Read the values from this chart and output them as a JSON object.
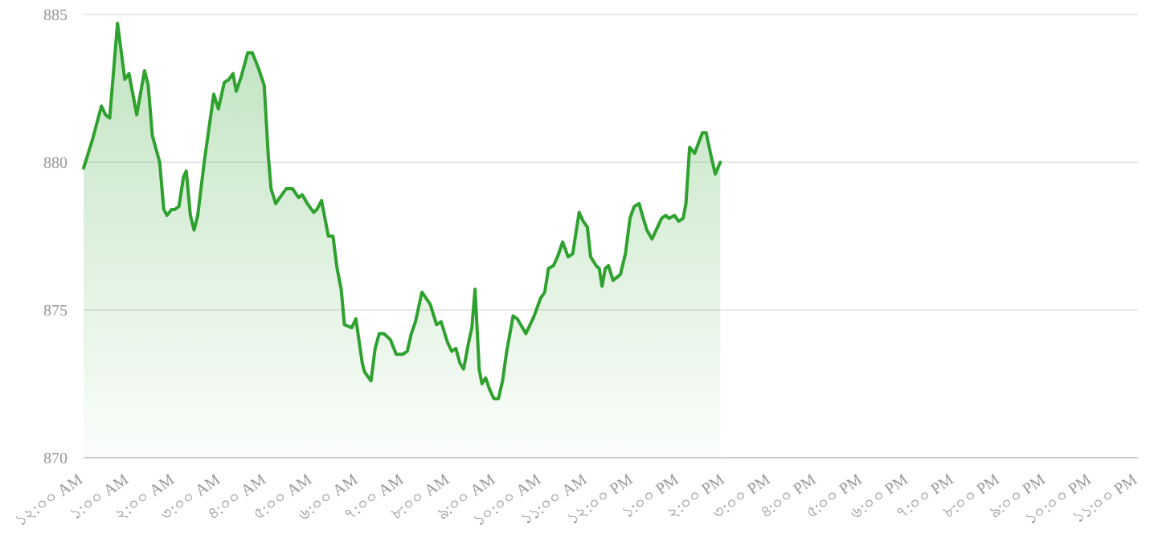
{
  "chart_data": {
    "type": "area",
    "color": "#2ea12e",
    "x": [
      0.0,
      0.2,
      0.39,
      0.48,
      0.57,
      0.74,
      0.9,
      0.99,
      1.16,
      1.33,
      1.41,
      1.5,
      1.66,
      1.75,
      1.82,
      1.92,
      1.99,
      2.08,
      2.18,
      2.24,
      2.33,
      2.41,
      2.49,
      2.64,
      2.84,
      2.94,
      3.07,
      3.17,
      3.26,
      3.33,
      3.44,
      3.58,
      3.68,
      3.81,
      3.94,
      4.03,
      4.09,
      4.19,
      4.28,
      4.42,
      4.56,
      4.69,
      4.77,
      4.88,
      5.02,
      5.09,
      5.19,
      5.34,
      5.44,
      5.53,
      5.62,
      5.69,
      5.85,
      5.94,
      6.08,
      6.13,
      6.27,
      6.36,
      6.45,
      6.55,
      6.69,
      6.82,
      6.96,
      7.06,
      7.15,
      7.24,
      7.38,
      7.47,
      7.56,
      7.7,
      7.8,
      7.94,
      8.03,
      8.12,
      8.21,
      8.29,
      8.4,
      8.47,
      8.54,
      8.63,
      8.69,
      8.77,
      8.86,
      8.95,
      9.05,
      9.14,
      9.23,
      9.37,
      9.46,
      9.65,
      9.83,
      9.97,
      10.06,
      10.14,
      10.25,
      10.34,
      10.45,
      10.57,
      10.67,
      10.81,
      10.9,
      10.99,
      11.06,
      11.18,
      11.25,
      11.31,
      11.38,
      11.45,
      11.55,
      11.71,
      11.82,
      11.92,
      12.01,
      12.12,
      12.19,
      12.29,
      12.4,
      12.49,
      12.61,
      12.7,
      12.77,
      12.89,
      12.98,
      13.08,
      13.14,
      13.22,
      13.33,
      13.5,
      13.58,
      13.69,
      13.78,
      13.89
    ],
    "values": [
      879.8,
      880.8,
      881.9,
      881.6,
      881.5,
      884.7,
      882.8,
      883.0,
      881.6,
      883.1,
      882.6,
      880.9,
      880.0,
      878.4,
      878.2,
      878.4,
      878.4,
      878.5,
      879.5,
      879.7,
      878.2,
      877.7,
      878.2,
      880.1,
      882.3,
      881.8,
      882.7,
      882.8,
      883.0,
      882.4,
      882.9,
      883.7,
      883.7,
      883.2,
      882.6,
      880.2,
      879.1,
      878.6,
      878.8,
      879.1,
      879.1,
      878.8,
      878.9,
      878.6,
      878.3,
      878.4,
      878.7,
      877.5,
      877.5,
      876.4,
      875.7,
      874.5,
      874.4,
      874.7,
      873.2,
      872.9,
      872.6,
      873.7,
      874.2,
      874.2,
      874.0,
      873.5,
      873.5,
      873.6,
      874.2,
      874.6,
      875.6,
      875.4,
      875.2,
      874.5,
      874.6,
      873.9,
      873.6,
      873.7,
      873.2,
      873.0,
      873.9,
      874.4,
      875.7,
      873.0,
      872.5,
      872.7,
      872.3,
      872.0,
      872.0,
      872.6,
      873.6,
      874.8,
      874.7,
      874.2,
      874.8,
      875.4,
      875.6,
      876.4,
      876.5,
      876.8,
      877.3,
      876.8,
      876.9,
      878.3,
      878.0,
      877.8,
      876.8,
      876.5,
      876.4,
      875.8,
      876.4,
      876.5,
      876.0,
      876.2,
      876.9,
      878.1,
      878.5,
      878.6,
      878.2,
      877.7,
      877.4,
      877.7,
      878.1,
      878.2,
      878.1,
      878.2,
      878.0,
      878.1,
      878.6,
      880.5,
      880.3,
      881.0,
      881.0,
      880.2,
      879.6,
      880.0
    ],
    "xlim": [
      0,
      23
    ],
    "xticks": [
      {
        "value": 0,
        "label": "১২:০০ AM"
      },
      {
        "value": 1,
        "label": "১:০০ AM"
      },
      {
        "value": 2,
        "label": "২:০০ AM"
      },
      {
        "value": 3,
        "label": "৩:০০ AM"
      },
      {
        "value": 4,
        "label": "৪:০০ AM"
      },
      {
        "value": 5,
        "label": "৫:০০ AM"
      },
      {
        "value": 6,
        "label": "৬:০০ AM"
      },
      {
        "value": 7,
        "label": "৭:০০ AM"
      },
      {
        "value": 8,
        "label": "৮:০০ AM"
      },
      {
        "value": 9,
        "label": "৯:০০ AM"
      },
      {
        "value": 10,
        "label": "১০:০০ AM"
      },
      {
        "value": 11,
        "label": "১১:০০ AM"
      },
      {
        "value": 12,
        "label": "১২:০০ PM"
      },
      {
        "value": 13,
        "label": "১:০০ PM"
      },
      {
        "value": 14,
        "label": "২:০০ PM"
      },
      {
        "value": 15,
        "label": "৩:০০ PM"
      },
      {
        "value": 16,
        "label": "৪:০০ PM"
      },
      {
        "value": 17,
        "label": "৫:০০ PM"
      },
      {
        "value": 18,
        "label": "৬:০০ PM"
      },
      {
        "value": 19,
        "label": "৭:০০ PM"
      },
      {
        "value": 20,
        "label": "৮:০০ PM"
      },
      {
        "value": 21,
        "label": "৯:০০ PM"
      },
      {
        "value": 22,
        "label": "১০:০০ PM"
      },
      {
        "value": 23,
        "label": "১১:০০ PM"
      }
    ],
    "ylim": [
      870,
      885
    ],
    "yticks": [
      870,
      875,
      880,
      885
    ],
    "grid": "y"
  }
}
